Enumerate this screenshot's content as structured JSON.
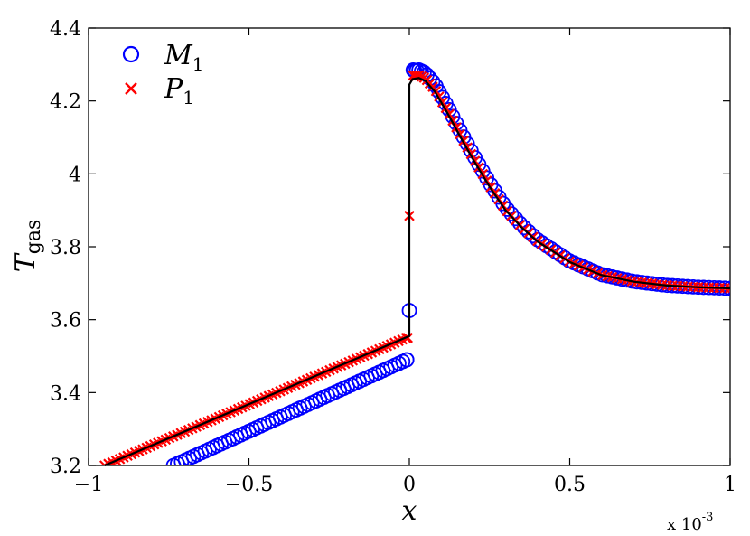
{
  "chart_data": {
    "type": "scatter",
    "xlabel": "x",
    "ylabel": "T",
    "ylabel_subscript": "gas",
    "x_multiplier_text": "x 10",
    "x_multiplier_exp": "-3",
    "xlim": [
      -1,
      1
    ],
    "ylim": [
      3.2,
      4.4
    ],
    "x_ticks": [
      -1,
      -0.5,
      0,
      0.5,
      1
    ],
    "x_tick_labels": [
      "−1",
      "−0.5",
      "0",
      "0.5",
      "1"
    ],
    "y_ticks": [
      3.2,
      3.4,
      3.6,
      3.8,
      4.0,
      4.2,
      4.4
    ],
    "y_tick_labels": [
      "3.2",
      "3.4",
      "3.6",
      "3.8",
      "4",
      "4.2",
      "4.4"
    ],
    "legend": {
      "position": "top-left",
      "entries": [
        {
          "label": "M",
          "subscript": "1",
          "marker": "circle",
          "color": "#0000ff"
        },
        {
          "label": "P",
          "subscript": "1",
          "marker": "x",
          "color": "#ff0000"
        }
      ]
    },
    "reference_curve": {
      "color": "#000000",
      "description": "solid black line",
      "x": [
        -0.95,
        0.0,
        0.0,
        0.01,
        0.03,
        0.05,
        0.08,
        0.12,
        0.16,
        0.2,
        0.25,
        0.3,
        0.35,
        0.4,
        0.5,
        0.6,
        0.7,
        0.8,
        0.9,
        1.0
      ],
      "y": [
        3.2,
        3.555,
        4.245,
        4.26,
        4.263,
        4.255,
        4.225,
        4.165,
        4.1,
        4.038,
        3.965,
        3.9,
        3.853,
        3.814,
        3.758,
        3.722,
        3.704,
        3.694,
        3.689,
        3.686
      ]
    },
    "series": [
      {
        "name": "M1",
        "marker": "circle",
        "color": "#0000ff",
        "segments": [
          {
            "x_start": -0.735,
            "x_end": -0.008,
            "y_start": 3.2,
            "y_end": 3.49,
            "count": 60
          },
          {
            "x": [
              -0.008
            ],
            "y": [
              3.49
            ]
          },
          {
            "x": [
              0.0
            ],
            "y": [
              3.625
            ]
          }
        ],
        "post_shock": {
          "x_start": 0.012,
          "x_end": 1.0,
          "count": 75,
          "peak": 4.285
        }
      },
      {
        "name": "P1",
        "marker": "x",
        "color": "#ff0000",
        "segments": [
          {
            "x_start": -0.95,
            "x_end": -0.01,
            "y_start": 3.2,
            "y_end": 3.55,
            "count": 80
          },
          {
            "x": [
              -0.005
            ],
            "y": [
              3.55
            ]
          },
          {
            "x": [
              0.0
            ],
            "y": [
              3.885
            ]
          }
        ],
        "post_shock": {
          "x_start": 0.012,
          "x_end": 1.0,
          "count": 75,
          "peak": 4.27
        }
      }
    ]
  }
}
